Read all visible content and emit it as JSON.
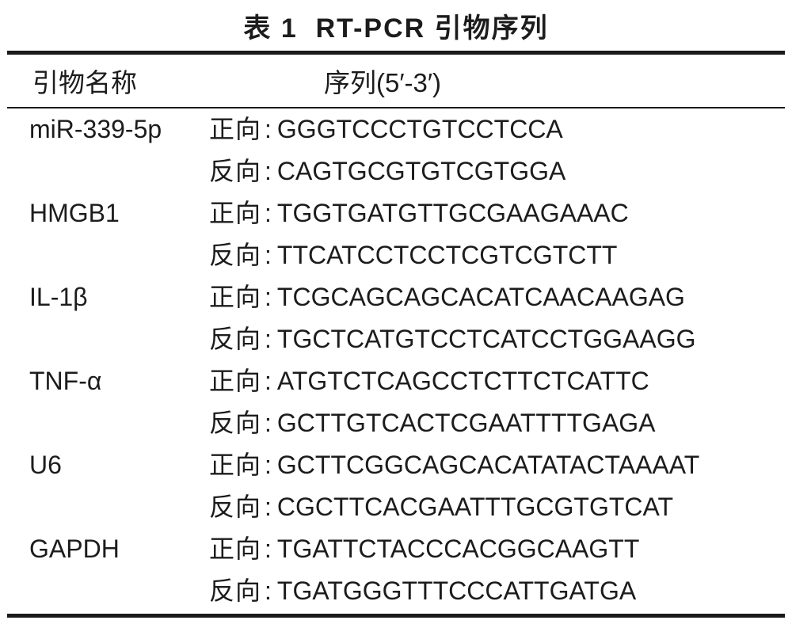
{
  "page": {
    "background": "#ffffff",
    "text_color": "#1c1c1c",
    "rule_color": "#1a1a1a"
  },
  "table": {
    "title": "表 1  RT-PCR 引物序列",
    "columns": {
      "name": "引物名称",
      "sequence": "序列(5′-3′)"
    },
    "labels": {
      "forward": "正向",
      "reverse": "反向",
      "colon": ":"
    },
    "rows": [
      {
        "name": "miR-339-5p",
        "forward": "GGGTCCCTGTCCTCCA",
        "reverse": "CAGTGCGTGTCGTGGA"
      },
      {
        "name": "HMGB1",
        "forward": "TGGTGATGTTGCGAAGAAAC",
        "reverse": "TTCATCCTCCTCGTCGTCTT"
      },
      {
        "name": "IL-1β",
        "forward": "TCGCAGCAGCACATCAACAAGAG",
        "reverse": "TGCTCATGTCCTCATCCTGGAAGG"
      },
      {
        "name": "TNF-α",
        "forward": "ATGTCTCAGCCTCTTCTCATTC",
        "reverse": "GCTTGTCACTCGAATTTTGAGA"
      },
      {
        "name": "U6",
        "forward": "GCTTCGGCAGCACATATACTAAAAT",
        "reverse": "CGCTTCACGAATTTGCGTGTCAT"
      },
      {
        "name": "GAPDH",
        "forward": "TGATTCTACCCACGGCAAGTT",
        "reverse": "TGATGGGTTTCCCATTGATGA"
      }
    ]
  }
}
